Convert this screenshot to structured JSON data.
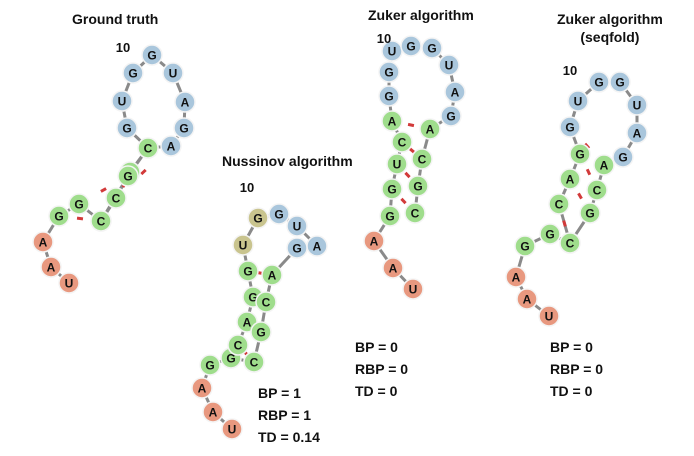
{
  "colors": {
    "tail": "#e8987f",
    "stem": "#9fdd8c",
    "loop": "#a9c6dc",
    "mismatch": "#c9c48e",
    "backbone": "#8a8a8a",
    "pair": "#d23a3a",
    "outline": "#f4f4f4"
  },
  "panels": [
    {
      "id": "ground-truth",
      "title": "Ground truth",
      "subtitle": "",
      "index_label": "10",
      "stats": []
    },
    {
      "id": "nussinov",
      "title": "Nussinov algorithm",
      "subtitle": "",
      "index_label": "10",
      "stats": [
        "BP = 1",
        "RBP = 1",
        "TD = 0.14"
      ]
    },
    {
      "id": "zuker",
      "title": "Zuker algorithm",
      "subtitle": "",
      "index_label": "10",
      "stats": [
        "BP = 0",
        "RBP = 0",
        "TD = 0"
      ]
    },
    {
      "id": "zuker-seqfold",
      "title": "Zuker algorithm",
      "subtitle": "(seqfold)",
      "index_label": "10",
      "stats": [
        "BP = 0",
        "RBP = 0",
        "TD = 0"
      ]
    }
  ],
  "sequence": [
    "U",
    "A",
    "A",
    "G",
    "G",
    "U",
    "C",
    "A",
    "G",
    "G",
    "U",
    "G",
    "G",
    "U",
    "A",
    "G",
    "A",
    "C",
    "G",
    "C"
  ]
}
